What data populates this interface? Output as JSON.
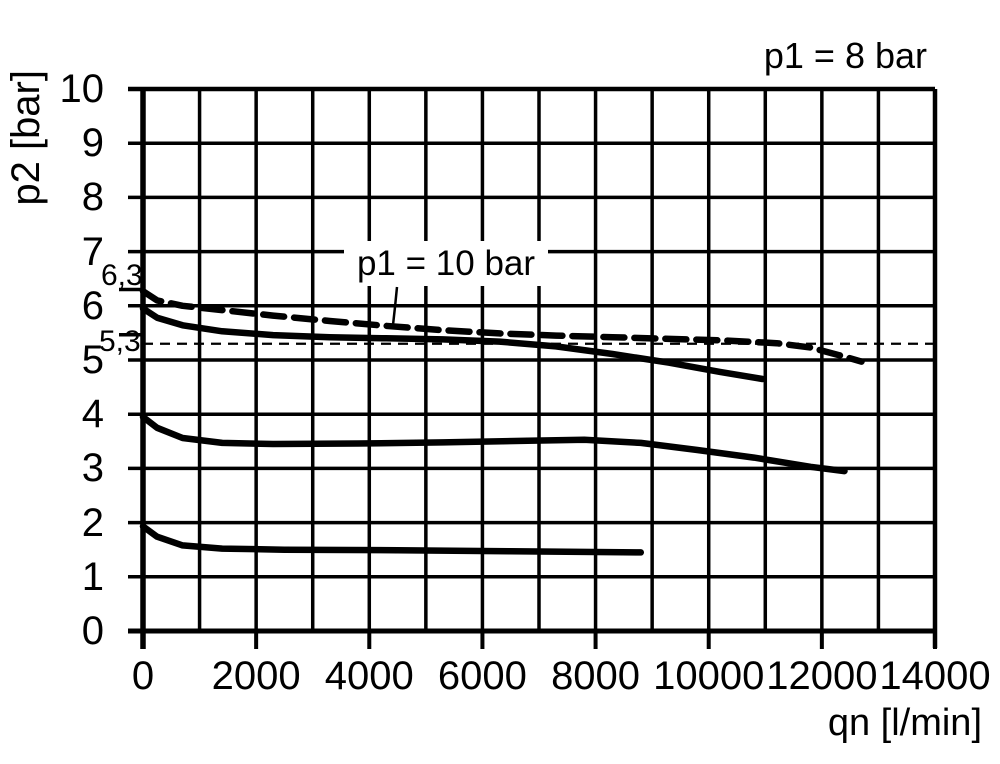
{
  "colors": {
    "ink": "#000000",
    "background": "#ffffff"
  },
  "chart_data": {
    "type": "line",
    "condition_label": "p1 = 8 bar",
    "xlabel": "qn [l/min]",
    "ylabel": "p2 [bar]",
    "xlim": [
      0,
      14000
    ],
    "ylim": [
      0,
      10
    ],
    "grid": {
      "x_step": 1000,
      "y_step": 1,
      "visible": true
    },
    "x_ticks": [
      0,
      2000,
      4000,
      6000,
      8000,
      10000,
      12000,
      14000
    ],
    "x_tick_labels": [
      "0",
      "2000",
      "4000",
      "6000",
      "8000",
      "10000",
      "12000",
      "14000"
    ],
    "y_ticks": [
      0,
      1,
      2,
      3,
      4,
      5,
      6,
      7,
      8,
      9,
      10
    ],
    "y_tick_labels": [
      "0",
      "1",
      "2",
      "3",
      "4",
      "5",
      "6",
      "7",
      "8",
      "9",
      "10"
    ],
    "references": [
      {
        "label": "6,3",
        "value": 6.3,
        "marker": "axis-tick"
      },
      {
        "label": "5,3",
        "value": 5.3,
        "marker": "axis-tick",
        "line": "thin-dashed"
      }
    ],
    "series": [
      {
        "name": "p1 = 10 bar",
        "style": "dashed",
        "points": [
          [
            0,
            6.27
          ],
          [
            250,
            6.1
          ],
          [
            700,
            6.0
          ],
          [
            1400,
            5.92
          ],
          [
            2300,
            5.82
          ],
          [
            3300,
            5.72
          ],
          [
            4300,
            5.63
          ],
          [
            5300,
            5.55
          ],
          [
            6300,
            5.49
          ],
          [
            7300,
            5.45
          ],
          [
            8300,
            5.42
          ],
          [
            9300,
            5.39
          ],
          [
            10300,
            5.36
          ],
          [
            11200,
            5.31
          ],
          [
            11800,
            5.23
          ],
          [
            12300,
            5.09
          ],
          [
            12700,
            4.97
          ]
        ]
      },
      {
        "name": "",
        "style": "solid",
        "points": [
          [
            0,
            5.95
          ],
          [
            250,
            5.78
          ],
          [
            700,
            5.64
          ],
          [
            1400,
            5.53
          ],
          [
            2300,
            5.46
          ],
          [
            3300,
            5.42
          ],
          [
            4300,
            5.4
          ],
          [
            5300,
            5.38
          ],
          [
            6300,
            5.34
          ],
          [
            7300,
            5.25
          ],
          [
            8300,
            5.11
          ],
          [
            9300,
            4.95
          ],
          [
            10200,
            4.78
          ],
          [
            10950,
            4.65
          ]
        ]
      },
      {
        "name": "",
        "style": "solid",
        "points": [
          [
            0,
            3.95
          ],
          [
            250,
            3.75
          ],
          [
            700,
            3.56
          ],
          [
            1400,
            3.47
          ],
          [
            2300,
            3.45
          ],
          [
            3800,
            3.46
          ],
          [
            5300,
            3.48
          ],
          [
            6800,
            3.51
          ],
          [
            7800,
            3.53
          ],
          [
            8800,
            3.47
          ],
          [
            9800,
            3.34
          ],
          [
            10800,
            3.2
          ],
          [
            11800,
            3.03
          ],
          [
            12400,
            2.95
          ]
        ]
      },
      {
        "name": "",
        "style": "solid",
        "points": [
          [
            0,
            1.93
          ],
          [
            250,
            1.74
          ],
          [
            700,
            1.58
          ],
          [
            1400,
            1.52
          ],
          [
            2500,
            1.5
          ],
          [
            4500,
            1.49
          ],
          [
            6500,
            1.47
          ],
          [
            8800,
            1.45
          ]
        ]
      }
    ]
  }
}
